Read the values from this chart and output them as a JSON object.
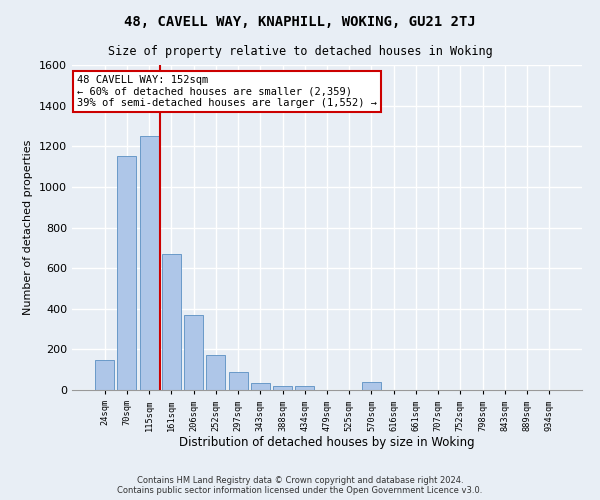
{
  "title": "48, CAVELL WAY, KNAPHILL, WOKING, GU21 2TJ",
  "subtitle": "Size of property relative to detached houses in Woking",
  "xlabel": "Distribution of detached houses by size in Woking",
  "ylabel": "Number of detached properties",
  "categories": [
    "24sqm",
    "70sqm",
    "115sqm",
    "161sqm",
    "206sqm",
    "252sqm",
    "297sqm",
    "343sqm",
    "388sqm",
    "434sqm",
    "479sqm",
    "525sqm",
    "570sqm",
    "616sqm",
    "661sqm",
    "707sqm",
    "752sqm",
    "798sqm",
    "843sqm",
    "889sqm",
    "934sqm"
  ],
  "values": [
    150,
    1150,
    1250,
    670,
    370,
    170,
    90,
    35,
    22,
    20,
    0,
    0,
    40,
    0,
    0,
    0,
    0,
    0,
    0,
    0,
    0
  ],
  "bar_color": "#aec6e8",
  "bar_edge_color": "#5a8fc2",
  "vline_x_index": 2,
  "vline_color": "#cc0000",
  "annotation_text": "48 CAVELL WAY: 152sqm\n← 60% of detached houses are smaller (2,359)\n39% of semi-detached houses are larger (1,552) →",
  "annotation_box_color": "#ffffff",
  "annotation_box_edge_color": "#cc0000",
  "ylim": [
    0,
    1600
  ],
  "yticks": [
    0,
    200,
    400,
    600,
    800,
    1000,
    1200,
    1400,
    1600
  ],
  "footer_line1": "Contains HM Land Registry data © Crown copyright and database right 2024.",
  "footer_line2": "Contains public sector information licensed under the Open Government Licence v3.0.",
  "background_color": "#e8eef5",
  "plot_background": "#e8eef5",
  "grid_color": "#ffffff"
}
